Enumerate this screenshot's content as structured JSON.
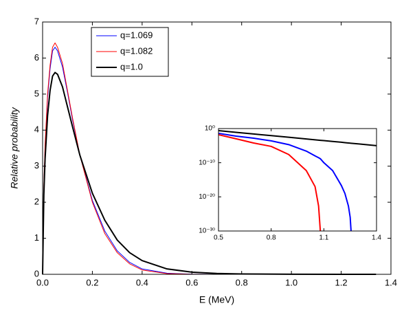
{
  "chart_data": [
    {
      "type": "line",
      "xlabel": "E  (MeV)",
      "ylabel": "Relative probability",
      "x": [
        0,
        0.005,
        0.01,
        0.02,
        0.03,
        0.04,
        0.05,
        0.06,
        0.08,
        0.1,
        0.12,
        0.15,
        0.2,
        0.25,
        0.3,
        0.35,
        0.4,
        0.5,
        0.6,
        0.7,
        0.8,
        1.0,
        1.2,
        1.34
      ],
      "series": [
        {
          "name": "q=1.069",
          "color": "#0000ff",
          "linewidth": 1,
          "values": [
            0,
            2.4,
            3.5,
            4.9,
            5.7,
            6.2,
            6.3,
            6.2,
            5.75,
            5.05,
            4.3,
            3.3,
            2.05,
            1.2,
            0.65,
            0.33,
            0.15,
            0.03,
            0.005,
            0.0005,
            0,
            0,
            0,
            0
          ]
        },
        {
          "name": "q=1.082",
          "color": "#ff0000",
          "linewidth": 1,
          "values": [
            0,
            2.5,
            3.6,
            5.0,
            5.8,
            6.3,
            6.42,
            6.3,
            5.85,
            5.1,
            4.35,
            3.3,
            2.0,
            1.13,
            0.6,
            0.29,
            0.12,
            0.02,
            0.003,
            0.0003,
            0,
            0,
            0,
            0
          ]
        },
        {
          "name": "q=1.0",
          "color": "#000000",
          "linewidth": 2,
          "values": [
            0,
            2.2,
            3.2,
            4.4,
            5.1,
            5.5,
            5.6,
            5.55,
            5.2,
            4.65,
            4.1,
            3.3,
            2.25,
            1.5,
            0.95,
            0.6,
            0.38,
            0.15,
            0.06,
            0.025,
            0.01,
            0.002,
            0.0003,
            0.0001
          ]
        }
      ],
      "xlim": [
        0,
        1.4
      ],
      "xticks": [
        {
          "value": 0,
          "label": "0.0"
        },
        0.2,
        0.4,
        0.6,
        0.8,
        {
          "value": 1,
          "label": "1.0"
        },
        1.2,
        1.4
      ],
      "ylim": [
        0,
        7
      ],
      "yticks": [
        0,
        1,
        2,
        3,
        4,
        5,
        6,
        7
      ],
      "legend": "upper left"
    },
    {
      "type": "line",
      "x": [
        0.5,
        0.6,
        0.7,
        0.8,
        0.9,
        1.0,
        1.05,
        1.07,
        1.08,
        1.1,
        1.15,
        1.2,
        1.22,
        1.24,
        1.25,
        1.255,
        1.3,
        1.4
      ],
      "series": [
        {
          "name": "q=1.069",
          "color": "#0000ff",
          "linewidth": 2,
          "values": [
            0.04,
            0.006,
            0.0015,
            0.00025,
            2e-05,
            2.5e-07,
            1e-08,
            3e-09,
            1.5e-09,
            1e-10,
            5e-13,
            2e-17,
            1e-19,
            2e-23,
            1e-26,
            1e-30,
            null,
            null
          ]
        },
        {
          "name": "q=1.082",
          "color": "#ff0000",
          "linewidth": 2,
          "values": [
            0.016,
            0.001,
            6e-05,
            6e-06,
            2.5e-08,
            5e-13,
            1e-17,
            2e-23,
            1e-30,
            null,
            null,
            null,
            null,
            null,
            null,
            null,
            null,
            null
          ]
        },
        {
          "name": "q=1.0",
          "color": "#000000",
          "linewidth": 2,
          "values": [
            0.25,
            0.08,
            0.026,
            0.0085,
            0.0028,
            0.0009,
            0.0005,
            0.0004,
            0.00036,
            0.0003,
            0.00017,
            0.0001,
            7.6e-05,
            6e-05,
            5.4e-05,
            5.1e-05,
            3.1e-05,
            1e-05
          ]
        }
      ],
      "xlim": [
        0.5,
        1.4
      ],
      "xticks": [
        0.5,
        0.8,
        1.1,
        1.4
      ],
      "ylim": [
        1e-30,
        1
      ],
      "yticks": [
        {
          "value": 1,
          "label": "10⁰"
        },
        {
          "value": 1e-10,
          "label": "10⁻¹⁰"
        },
        {
          "value": 1e-20,
          "label": "10⁻²⁰"
        },
        {
          "value": 1e-30,
          "label": "10⁻³⁰"
        }
      ],
      "ylog": true
    }
  ]
}
